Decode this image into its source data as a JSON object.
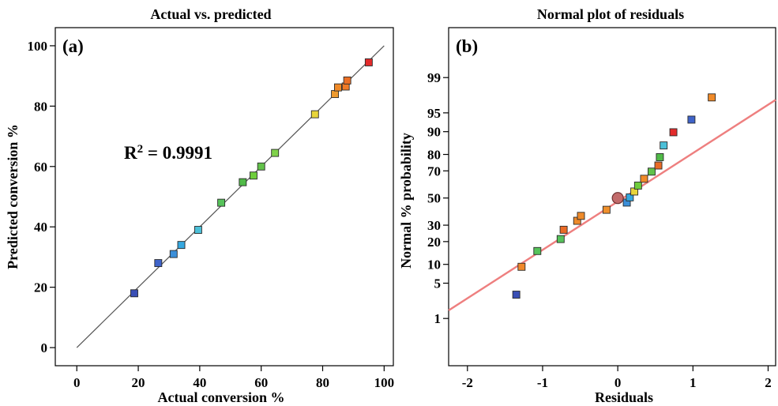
{
  "chart_data": [
    {
      "type": "scatter",
      "panel_label": "(a)",
      "title": "Actual vs. predicted",
      "xlabel": "Actual conversion %",
      "ylabel": "Predicted conversion %",
      "xlim": [
        -7,
        103
      ],
      "ylim": [
        -6,
        106
      ],
      "xticks": [
        0,
        20,
        40,
        60,
        80,
        100
      ],
      "yticks": [
        0,
        20,
        40,
        60,
        80,
        100
      ],
      "annotation": {
        "prefix": "R",
        "sup": "2",
        "text": " = 0.9991"
      },
      "fit_line": {
        "x": [
          0,
          100
        ],
        "y": [
          0,
          100
        ],
        "color": "#555555"
      },
      "points": [
        {
          "x": 18.7,
          "y": 18.0,
          "color": "#3a4fb5"
        },
        {
          "x": 26.5,
          "y": 28.0,
          "color": "#3f63c9"
        },
        {
          "x": 31.5,
          "y": 31.0,
          "color": "#3b8fd9"
        },
        {
          "x": 34.0,
          "y": 34.0,
          "color": "#35a8e0"
        },
        {
          "x": 39.5,
          "y": 39.0,
          "color": "#4cc0d8"
        },
        {
          "x": 47.0,
          "y": 48.0,
          "color": "#56c25a"
        },
        {
          "x": 54.0,
          "y": 54.8,
          "color": "#50ba48"
        },
        {
          "x": 57.5,
          "y": 57.0,
          "color": "#6fcd3c"
        },
        {
          "x": 60.0,
          "y": 60.0,
          "color": "#62c24a"
        },
        {
          "x": 64.5,
          "y": 64.5,
          "color": "#7fd24a"
        },
        {
          "x": 77.5,
          "y": 77.3,
          "color": "#e8d53a"
        },
        {
          "x": 84.0,
          "y": 84.0,
          "color": "#ee9a2e"
        },
        {
          "x": 85.0,
          "y": 86.2,
          "color": "#f08a28"
        },
        {
          "x": 87.5,
          "y": 86.5,
          "color": "#f07b26"
        },
        {
          "x": 88.0,
          "y": 88.5,
          "color": "#ec7025"
        },
        {
          "x": 95.0,
          "y": 94.5,
          "color": "#e32b2b"
        }
      ]
    },
    {
      "type": "scatter",
      "panel_label": "(b)",
      "title": "Normal plot of residuals",
      "xlabel": "Residuals",
      "ylabel": "Normal % probability",
      "xlim": [
        -2.25,
        2.1
      ],
      "ylim": [
        0.06,
        99.95
      ],
      "yscale": "normal-probability",
      "xticks": [
        -2,
        -1,
        0,
        1,
        2
      ],
      "yticks": [
        1,
        5,
        10,
        20,
        30,
        50,
        70,
        80,
        90,
        95,
        99
      ],
      "fit_line": {
        "x": [
          -2.25,
          2.1
        ],
        "y": [
          1.5,
          97.1
        ],
        "color": "#ee7f7f"
      },
      "center_point": {
        "x": 0.0,
        "y": 50,
        "color": "#c26b6b"
      },
      "points": [
        {
          "x": -1.35,
          "y": 3.1,
          "color": "#3a4fb5"
        },
        {
          "x": -1.28,
          "y": 9.2,
          "color": "#f0882a"
        },
        {
          "x": -1.07,
          "y": 15.3,
          "color": "#56c25a"
        },
        {
          "x": -0.76,
          "y": 21.4,
          "color": "#56c25a"
        },
        {
          "x": -0.72,
          "y": 27.0,
          "color": "#ea6a25"
        },
        {
          "x": -0.54,
          "y": 33.0,
          "color": "#ee8a2a"
        },
        {
          "x": -0.49,
          "y": 36.5,
          "color": "#ee8a2a"
        },
        {
          "x": -0.15,
          "y": 41.0,
          "color": "#f0902c"
        },
        {
          "x": 0.12,
          "y": 46.5,
          "color": "#3b8fd9"
        },
        {
          "x": 0.16,
          "y": 50.5,
          "color": "#35a8e0"
        },
        {
          "x": 0.22,
          "y": 55.0,
          "color": "#e8d53a"
        },
        {
          "x": 0.27,
          "y": 59.5,
          "color": "#6fcd3c"
        },
        {
          "x": 0.35,
          "y": 64.5,
          "color": "#f08a28"
        },
        {
          "x": 0.45,
          "y": 69.5,
          "color": "#62c24a"
        },
        {
          "x": 0.54,
          "y": 73.5,
          "color": "#ea6a25"
        },
        {
          "x": 0.56,
          "y": 78.5,
          "color": "#50ba48"
        },
        {
          "x": 0.61,
          "y": 84.5,
          "color": "#4cc0d8"
        },
        {
          "x": 0.74,
          "y": 89.8,
          "color": "#e32b2b"
        },
        {
          "x": 0.98,
          "y": 93.5,
          "color": "#3f63c9"
        },
        {
          "x": 1.25,
          "y": 97.4,
          "color": "#f08a28"
        }
      ]
    }
  ]
}
